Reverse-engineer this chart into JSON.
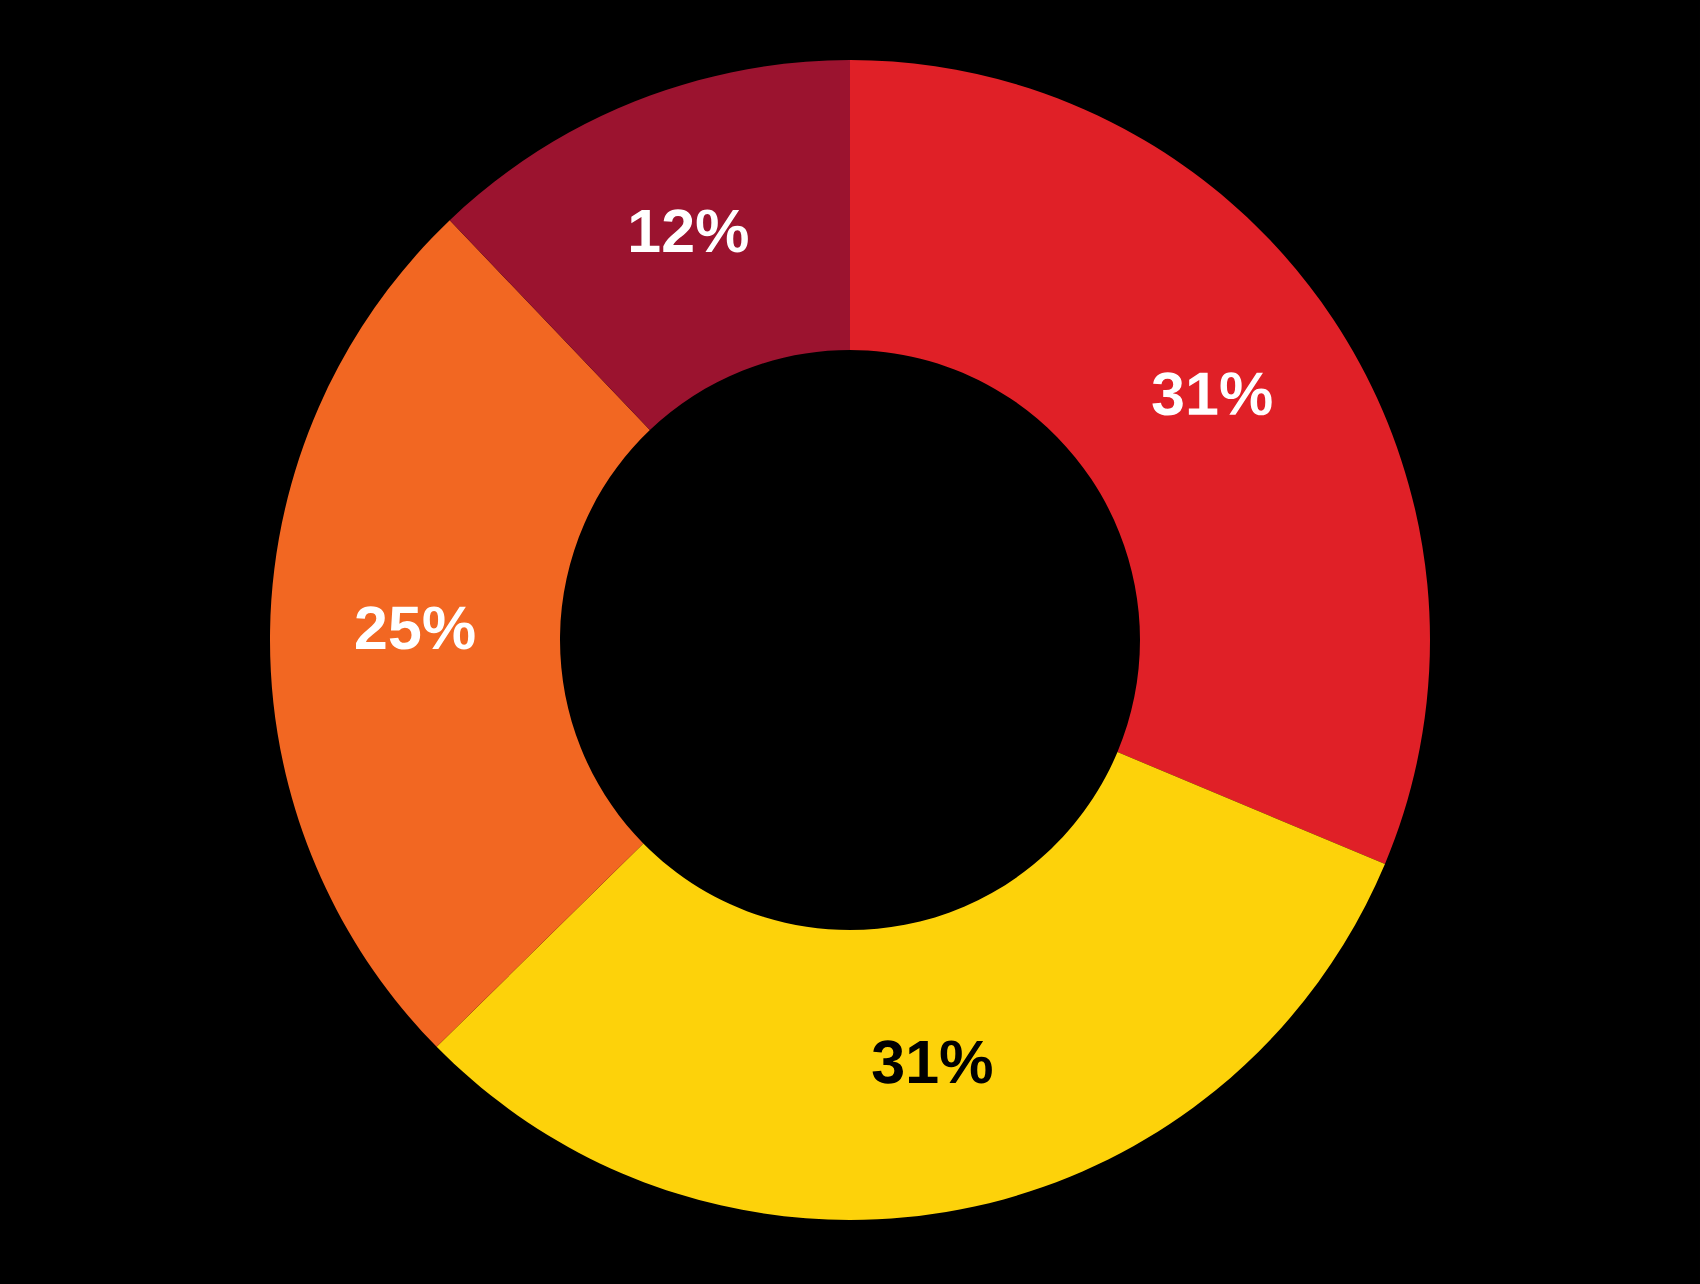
{
  "chart_data": {
    "type": "donut",
    "categories": [
      null,
      null,
      null,
      null
    ],
    "values": [
      31,
      31,
      25,
      12
    ],
    "value_labels": [
      "31%",
      "31%",
      "25%",
      "12%"
    ],
    "colors": [
      "#e02027",
      "#fdd20a",
      "#f26722",
      "#9b132f"
    ]
  }
}
